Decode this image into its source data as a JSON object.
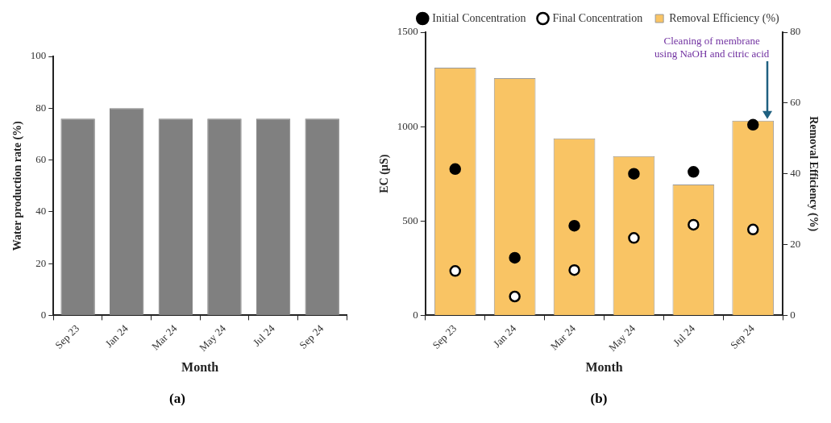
{
  "chart_data": [
    {
      "type": "bar",
      "xlabel": "Month",
      "ylabel": "Water production rate (%)",
      "categories": [
        "Sep 23",
        "Jan 24",
        "Mar 24",
        "May 24",
        "Jul 24",
        "Sep 24"
      ],
      "values": [
        76,
        80,
        76,
        76,
        76,
        76
      ],
      "color": "#808080",
      "ylim": [
        0,
        100
      ],
      "yticks": [
        0,
        20,
        40,
        60,
        80,
        100
      ],
      "grid": false,
      "legend": false,
      "annotations": [
        "(a)"
      ]
    },
    {
      "type": "bar",
      "xlabel": "Month",
      "ylabel": "EC (µS)",
      "y2label": "Removal Efficiency (%)",
      "categories": [
        "Sep 23",
        "Jan 24",
        "Mar 24",
        "May 24",
        "Jul 24",
        "Sep 24"
      ],
      "series": [
        {
          "name": "Initial Concentration",
          "type": "scatter",
          "color": "#000000",
          "values": [
            775,
            305,
            475,
            750,
            760,
            1010
          ]
        },
        {
          "name": "Final Concentration",
          "type": "scatter",
          "color": "#000000",
          "values": [
            235,
            100,
            240,
            410,
            480,
            455
          ]
        },
        {
          "name": "Removal Efficiency (%)",
          "type": "bar",
          "axis": "y2",
          "color": "#f9c464",
          "values": [
            70,
            67,
            50,
            45,
            37,
            55
          ]
        }
      ],
      "ylim": [
        0,
        1500
      ],
      "yticks": [
        0,
        500,
        1000,
        1500
      ],
      "y2lim": [
        0,
        80
      ],
      "y2ticks": [
        0,
        20,
        40,
        60,
        80
      ],
      "grid": false,
      "legend": "top",
      "marker": "circle",
      "annotations": [
        "Cleaning of membrane using NaOH and citric acid",
        "(b)"
      ]
    }
  ]
}
